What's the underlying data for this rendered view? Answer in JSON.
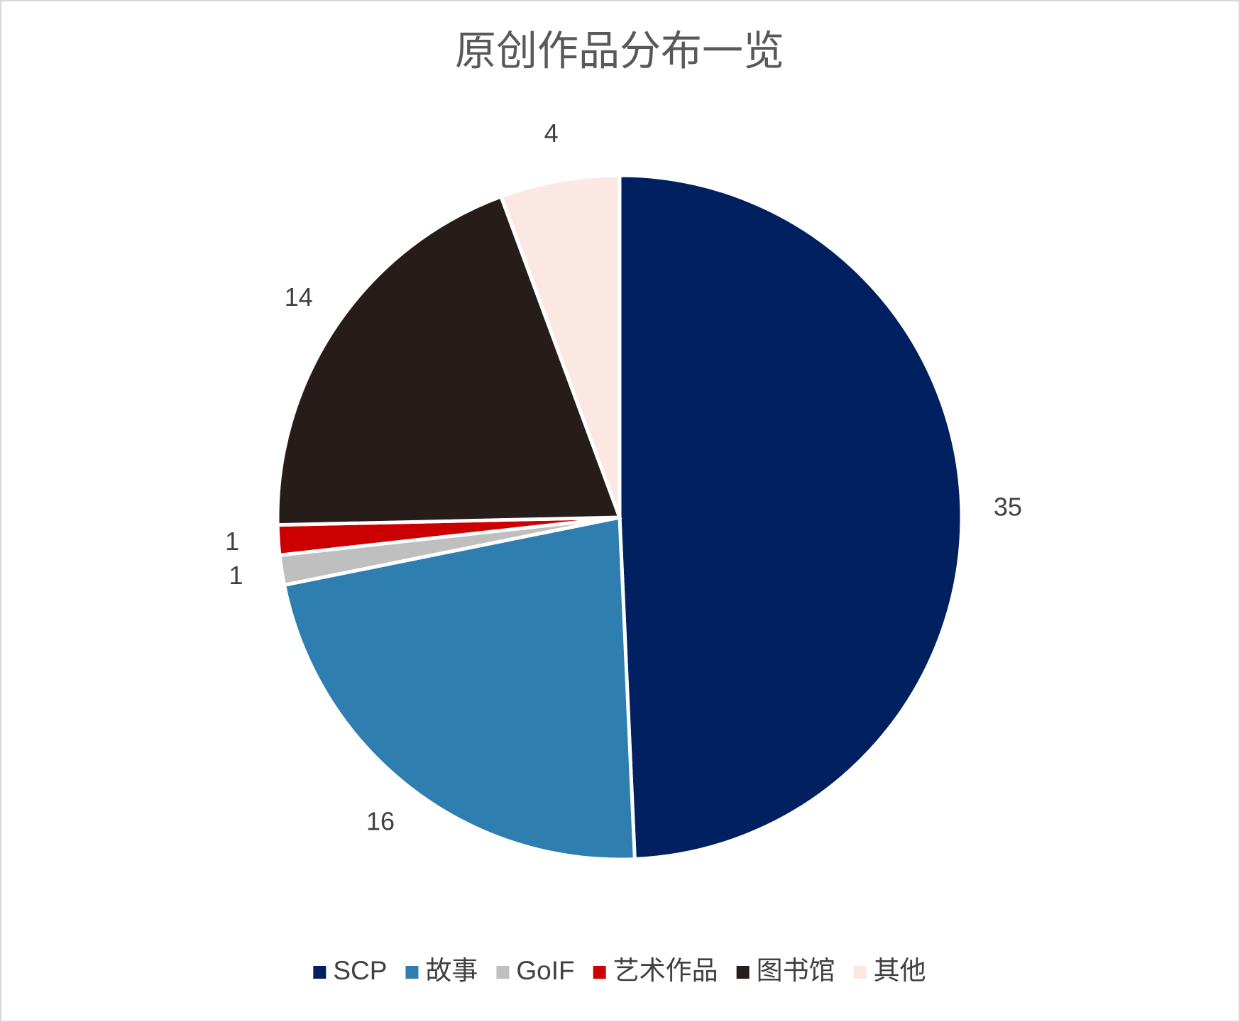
{
  "chart_data": {
    "type": "pie",
    "title": "原创作品分布一览",
    "categories": [
      "SCP",
      "故事",
      "GoIF",
      "艺术作品",
      "图书馆",
      "其他"
    ],
    "values": [
      35,
      16,
      1,
      1,
      14,
      4
    ],
    "colors": [
      "#002060",
      "#2e7eb0",
      "#bfbfbf",
      "#cc0000",
      "#261c1a",
      "#fce8e2"
    ],
    "legend": "bottom"
  }
}
